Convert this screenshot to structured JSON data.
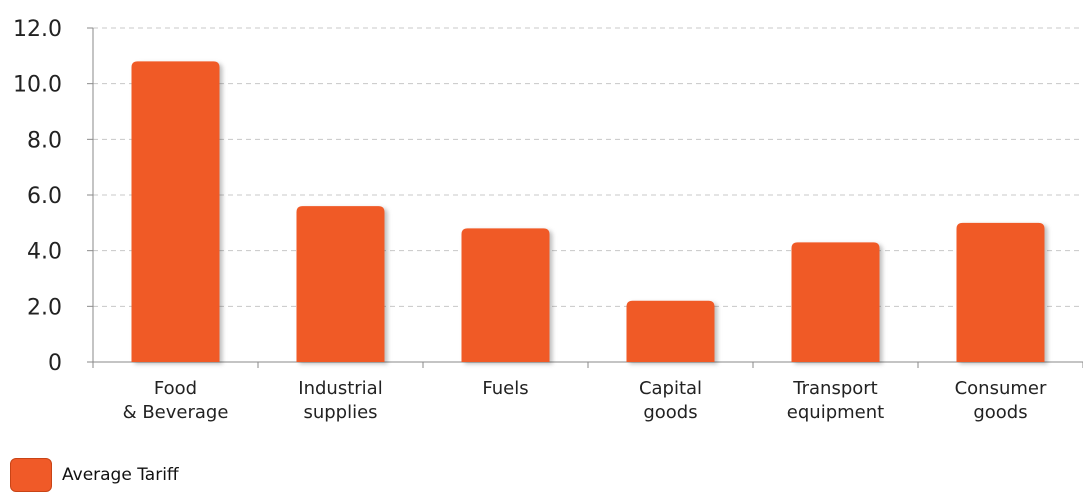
{
  "chart_data": {
    "type": "bar",
    "categories": [
      [
        "Food",
        "& Beverage"
      ],
      [
        "Industrial",
        "supplies"
      ],
      [
        "Fuels"
      ],
      [
        "Capital",
        "goods"
      ],
      [
        "Transport",
        "equipment"
      ],
      [
        "Consumer",
        "goods"
      ]
    ],
    "series": [
      {
        "name": "Average Tariff",
        "values": [
          10.8,
          5.6,
          4.8,
          2.2,
          4.3,
          5.0
        ]
      }
    ],
    "ylim": [
      0,
      12
    ],
    "yticks": [
      0,
      2,
      4,
      6,
      8,
      10,
      12
    ],
    "ytick_labels": [
      "0",
      "2.0",
      "4.0",
      "6.0",
      "8.0",
      "10.0",
      "12.0"
    ],
    "grid": "horizontal dashed",
    "legend": "bottom-left",
    "bar_color": "#f05a28",
    "title": "",
    "xlabel": "",
    "ylabel": ""
  },
  "legend": {
    "label": "Average Tariff"
  }
}
